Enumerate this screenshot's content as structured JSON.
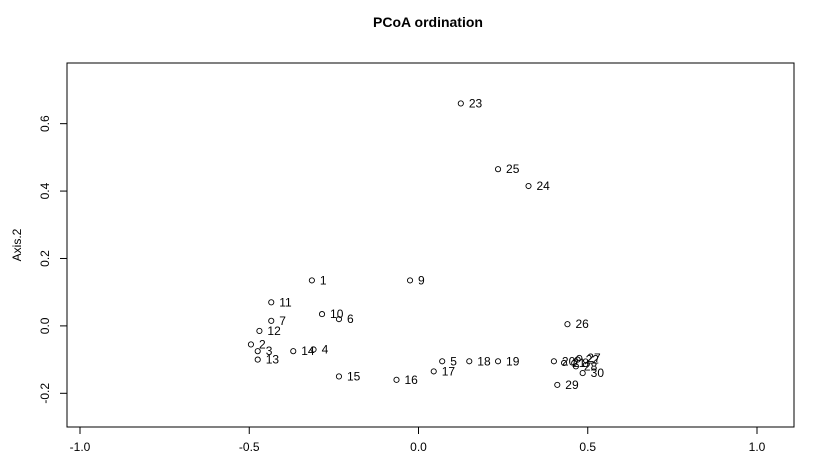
{
  "chart_data": {
    "type": "scatter",
    "title": "PCoA ordination",
    "xlabel": "",
    "ylabel": "Axis.2",
    "xlim": [
      -1.0,
      1.0
    ],
    "ylim": [
      -0.3,
      0.78
    ],
    "xticks": [
      -1.0,
      -0.5,
      0.0,
      0.5,
      1.0
    ],
    "xtick_labels": [
      "-1.0",
      "-0.5",
      "0.0",
      "0.5",
      "1.0"
    ],
    "yticks": [
      -0.2,
      0.0,
      0.2,
      0.4,
      0.6
    ],
    "ytick_labels": [
      "-0.2",
      "0.0",
      "0.2",
      "0.4",
      "0.6"
    ],
    "grid": false,
    "legend": "none",
    "points": [
      {
        "label": "1",
        "x": -0.315,
        "y": 0.135
      },
      {
        "label": "2",
        "x": -0.495,
        "y": -0.055
      },
      {
        "label": "3",
        "x": -0.475,
        "y": -0.075
      },
      {
        "label": "4",
        "x": -0.31,
        "y": -0.07
      },
      {
        "label": "5",
        "x": 0.07,
        "y": -0.105
      },
      {
        "label": "6",
        "x": -0.235,
        "y": 0.02
      },
      {
        "label": "7",
        "x": -0.435,
        "y": 0.015
      },
      {
        "label": "8",
        "x": 0.46,
        "y": -0.11
      },
      {
        "label": "9",
        "x": -0.025,
        "y": 0.135
      },
      {
        "label": "10",
        "x": -0.285,
        "y": 0.035
      },
      {
        "label": "11",
        "x": -0.435,
        "y": 0.07
      },
      {
        "label": "12",
        "x": -0.47,
        "y": -0.015
      },
      {
        "label": "13",
        "x": -0.475,
        "y": -0.1
      },
      {
        "label": "14",
        "x": -0.37,
        "y": -0.075
      },
      {
        "label": "15",
        "x": -0.235,
        "y": -0.15
      },
      {
        "label": "16",
        "x": -0.065,
        "y": -0.16
      },
      {
        "label": "17",
        "x": 0.045,
        "y": -0.135
      },
      {
        "label": "18",
        "x": 0.15,
        "y": -0.105
      },
      {
        "label": "19",
        "x": 0.235,
        "y": -0.105
      },
      {
        "label": "20",
        "x": 0.4,
        "y": -0.105
      },
      {
        "label": "21",
        "x": 0.43,
        "y": -0.11
      },
      {
        "label": "22",
        "x": 0.47,
        "y": -0.1
      },
      {
        "label": "23",
        "x": 0.125,
        "y": 0.66
      },
      {
        "label": "24",
        "x": 0.325,
        "y": 0.415
      },
      {
        "label": "25",
        "x": 0.235,
        "y": 0.465
      },
      {
        "label": "26",
        "x": 0.44,
        "y": 0.005
      },
      {
        "label": "27",
        "x": 0.475,
        "y": -0.095
      },
      {
        "label": "28",
        "x": 0.465,
        "y": -0.12
      },
      {
        "label": "29",
        "x": 0.41,
        "y": -0.175
      },
      {
        "label": "30",
        "x": 0.485,
        "y": -0.14
      }
    ]
  }
}
